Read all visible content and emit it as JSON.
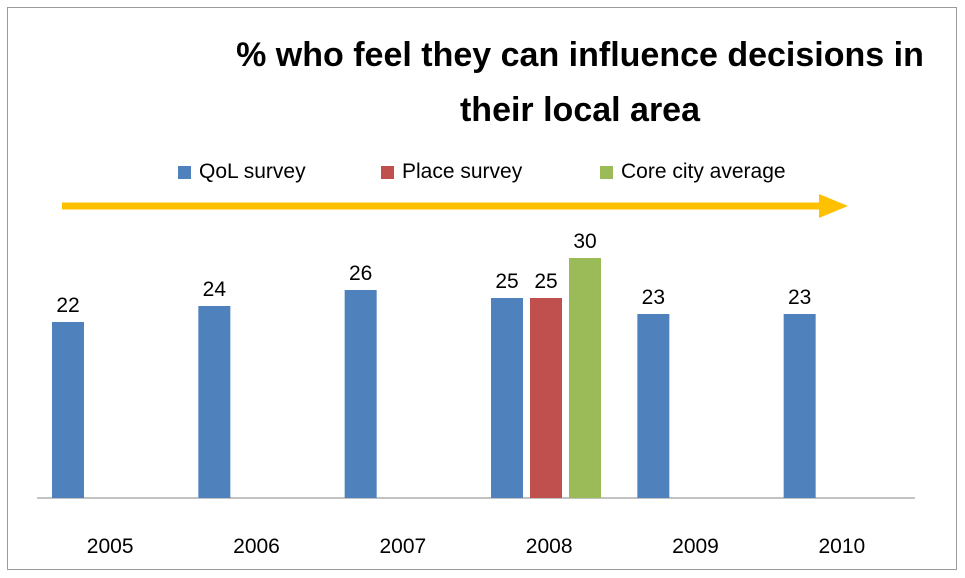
{
  "chart_data": {
    "type": "bar",
    "title": "% who feel they can influence decisions in their local area",
    "title_lines": [
      "% who feel they can influence decisions in",
      "their local area"
    ],
    "categories": [
      "2005",
      "2006",
      "2007",
      "2008",
      "2009",
      "2010"
    ],
    "series": [
      {
        "name": "QoL survey",
        "color": "#4f81bd",
        "values": [
          22,
          24,
          26,
          25,
          23,
          23
        ]
      },
      {
        "name": "Place survey",
        "color": "#c0504d",
        "values": [
          null,
          null,
          null,
          25,
          null,
          null
        ]
      },
      {
        "name": "Core city average",
        "color": "#9bbb59",
        "values": [
          null,
          null,
          null,
          30,
          null,
          null
        ]
      }
    ],
    "data_labels": true,
    "ylim": [
      0,
      35
    ],
    "yaxis_visible": false,
    "grid": false,
    "legend_position": "top",
    "annotation": {
      "type": "arrow",
      "direction": "right",
      "color": "#ffc000"
    }
  }
}
